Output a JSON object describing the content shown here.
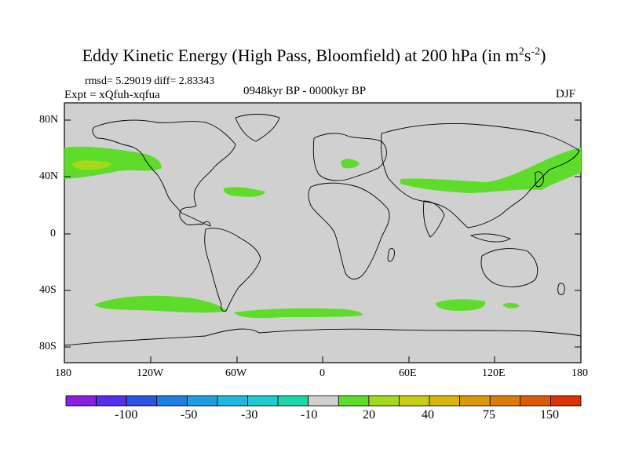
{
  "title": {
    "prefix": "Eddy Kinetic Energy (High Pass, Bloomfield) at 200 hPa (in m",
    "sup1": "2",
    "mid": "s",
    "sup2": "-2",
    "suffix": ")"
  },
  "stats": "rmsd= 5.29019 diff= 2.83343",
  "experiment": "Expt = xQfuh-xqfua",
  "period": "0948kyr BP - 0000kyr BP",
  "season": "DJF",
  "lat_ticks": [
    "80N",
    "40N",
    "0",
    "40S",
    "80S"
  ],
  "lon_ticks": [
    "180",
    "120W",
    "60W",
    "0",
    "60E",
    "120E",
    "180"
  ],
  "colorbar": {
    "colors": [
      "#8a1fe0",
      "#5a2ee6",
      "#2f55e0",
      "#1f7fe0",
      "#1f9de0",
      "#1fb6e0",
      "#1fcbd0",
      "#1fd6a8",
      "#d0d0d0",
      "#5ddc2a",
      "#a6d81c",
      "#c8cc14",
      "#d8b40c",
      "#dc9a08",
      "#dc7c06",
      "#dc5a06",
      "#d83406"
    ],
    "labels": [
      "-100",
      "-50",
      "-30",
      "-10",
      "20",
      "40",
      "75",
      "150"
    ]
  },
  "map_colors": {
    "background": "#d0d0d0",
    "positive": "#5ddc2a",
    "strong": "#a6d81c"
  }
}
